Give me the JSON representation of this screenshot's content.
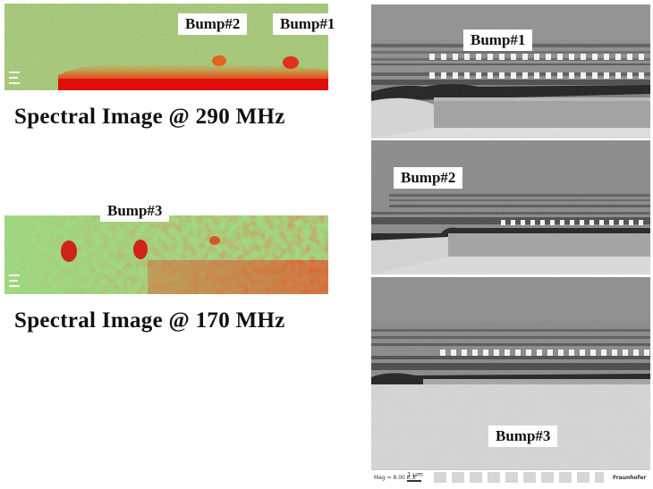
{
  "spectral_images": [
    {
      "caption": "Spectral Image @ 290 MHz",
      "labels": [
        "Bump#2",
        "Bump#1"
      ]
    },
    {
      "caption": "Spectral Image @ 170 MHz",
      "labels": [
        "Bump#3"
      ]
    }
  ],
  "sem_images": [
    {
      "label": "Bump#1"
    },
    {
      "label": "Bump#2"
    },
    {
      "label": "Bump#3"
    }
  ],
  "sem_footer": {
    "mag": "Mag = 8.00 K X",
    "scale": "1 μm",
    "brand": "Fraunhofer"
  },
  "colors": {
    "hot": "#e81010",
    "warm": "#f0e020",
    "cool": "#20c0a0",
    "sem_gray": "#9a9a9a"
  }
}
